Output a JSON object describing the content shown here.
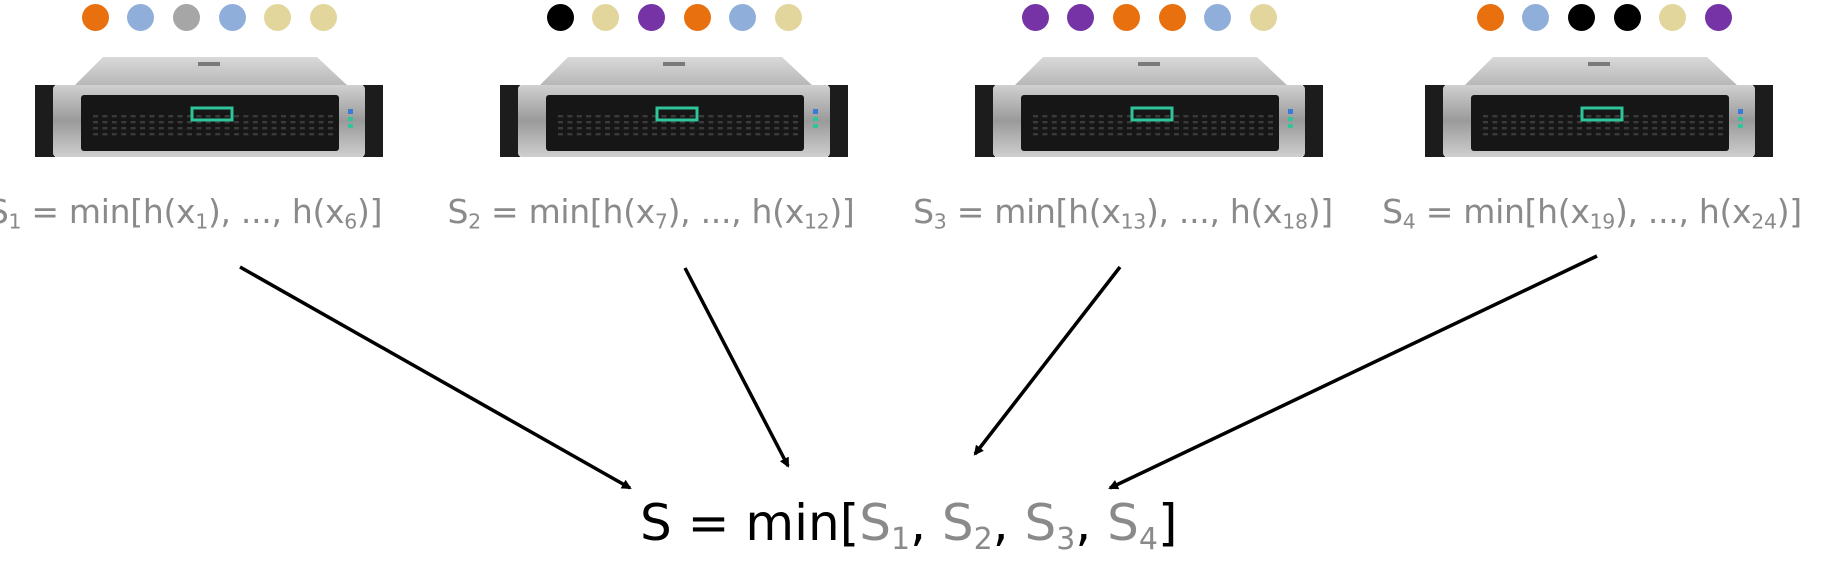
{
  "colors": {
    "orange": "#E8700E",
    "blue": "#8FAEDA",
    "gray": "#A6A6A6",
    "khaki": "#E2D69D",
    "black": "#000000",
    "purple": "#7533A6"
  },
  "servers": [
    {
      "dots": [
        "orange",
        "blue",
        "gray",
        "blue",
        "khaki",
        "khaki"
      ],
      "formula": {
        "s": "S",
        "s_sub": "1",
        "mid": " = min[h(x",
        "a_sub": "1",
        "sep": "), ..., h(x",
        "b_sub": "6",
        "end": ")]"
      }
    },
    {
      "dots": [
        "black",
        "khaki",
        "purple",
        "orange",
        "blue",
        "khaki"
      ],
      "formula": {
        "s": "S",
        "s_sub": "2",
        "mid": " = min[h(x",
        "a_sub": "7",
        "sep": "), ..., h(x",
        "b_sub": "12",
        "end": ")]"
      }
    },
    {
      "dots": [
        "purple",
        "purple",
        "orange",
        "orange",
        "blue",
        "khaki"
      ],
      "formula": {
        "s": "S",
        "s_sub": "3",
        "mid": " = min[h(x",
        "a_sub": "13",
        "sep": "), ..., h(x",
        "b_sub": "18",
        "end": ")]"
      }
    },
    {
      "dots": [
        "orange",
        "blue",
        "black",
        "black",
        "khaki",
        "purple"
      ],
      "formula": {
        "s": "S",
        "s_sub": "4",
        "mid": " = min[h(x",
        "a_sub": "19",
        "sep": "), ..., h(x",
        "b_sub": "24",
        "end": ")]"
      }
    }
  ],
  "final": {
    "lhs": "S = min[",
    "terms": [
      {
        "s": "S",
        "sub": "1",
        "sep": ", "
      },
      {
        "s": "S",
        "sub": "2",
        "sep": ", "
      },
      {
        "s": "S",
        "sub": "3",
        "sep": ", "
      },
      {
        "s": "S",
        "sub": "4",
        "sep": ""
      }
    ],
    "rhs": "]"
  }
}
